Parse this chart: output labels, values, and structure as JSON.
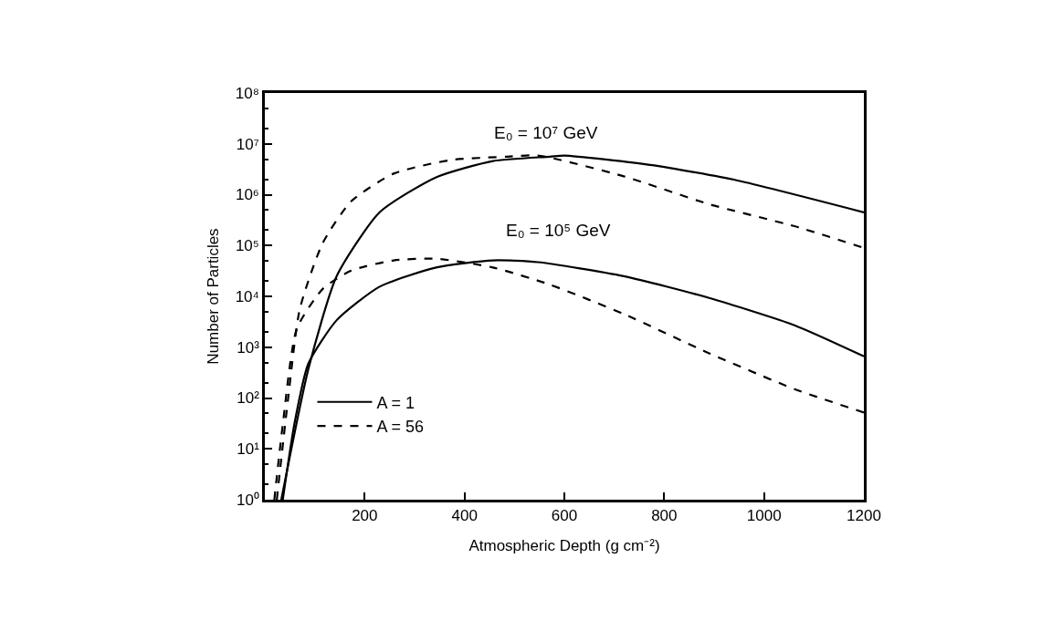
{
  "chart_data": {
    "type": "line",
    "xlabel": "Atmospheric Depth (g cm⁻²)",
    "ylabel": "Number of Particles",
    "log": "y",
    "legend": "bottom left",
    "marker": "none",
    "xlim": [
      0,
      1200
    ],
    "xticks": [
      200,
      400,
      600,
      800,
      1000,
      1200
    ],
    "ylim": [
      1,
      100000000
    ],
    "yticks": [
      {
        "value": 1,
        "label": "10⁰"
      },
      {
        "value": 10,
        "label": "10¹"
      },
      {
        "value": 100,
        "label": "10²"
      },
      {
        "value": 1000,
        "label": "10³"
      },
      {
        "value": 10000,
        "label": "10⁴"
      },
      {
        "value": 100000,
        "label": "10⁵"
      },
      {
        "value": 1000000,
        "label": "10⁶"
      },
      {
        "value": 10000000,
        "label": "10⁷"
      },
      {
        "value": 100000000,
        "label": "10⁸"
      }
    ],
    "series": [
      {
        "name": "A = 1",
        "color": "#000000",
        "line_style": "solid",
        "x": [
          33,
          87,
          144,
          230,
          343,
          457,
          571,
          600,
          776,
          947,
          1200
        ],
        "values": [
          1,
          363,
          25000,
          450000,
          2200000,
          4600000,
          5600000,
          5900000,
          3800000,
          1900000,
          450000
        ]
      },
      {
        "name": "A = 56",
        "color": "#000000",
        "line_style": "dashed",
        "x": [
          24,
          47,
          70,
          116,
          173,
          258,
          372,
          486,
          547,
          719,
          890,
          1061,
          1200
        ],
        "values": [
          1,
          105,
          5600,
          112000,
          740000,
          2600000,
          4800000,
          5600000,
          5900000,
          2300000,
          650000,
          240000,
          90000
        ]
      },
      {
        "color": "#000000",
        "line_style": "solid",
        "x": [
          36,
          59,
          87,
          144,
          230,
          343,
          457,
          547,
          719,
          890,
          1061,
          1200
        ],
        "values": [
          1,
          30,
          470,
          3400,
          15500,
          37000,
          51000,
          47000,
          25000,
          9300,
          2700,
          660
        ]
      },
      {
        "color": "#000000",
        "line_style": "dashed",
        "x": [
          19,
          36,
          64,
          116,
          173,
          258,
          343,
          457,
          571,
          719,
          890,
          1061,
          1200
        ],
        "values": [
          1,
          30,
          2300,
          14000,
          32000,
          51000,
          55000,
          37000,
          17000,
          4500,
          760,
          150,
          52
        ]
      }
    ],
    "annotations": [
      "E₀ = 10⁷ GeV",
      "E₀ = 10⁵ GeV"
    ]
  }
}
